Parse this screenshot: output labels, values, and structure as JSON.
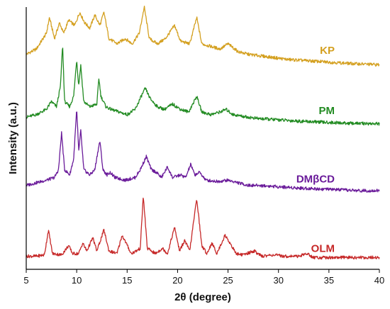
{
  "chart_data": {
    "type": "line",
    "title": "",
    "xlabel": "2θ (degree)",
    "ylabel": "Intensity (a.u.)",
    "xlim": [
      5,
      40
    ],
    "xticks": [
      5,
      10,
      15,
      20,
      25,
      30,
      35,
      40
    ],
    "grid": false,
    "legend": "inline labels at right end of each trace",
    "series": [
      {
        "name": "KP",
        "color": "#D4A020",
        "baseline": 0.8,
        "points": [
          [
            5,
            0.82
          ],
          [
            6,
            0.84
          ],
          [
            7,
            0.9
          ],
          [
            7.3,
            0.96
          ],
          [
            7.8,
            0.88
          ],
          [
            8.3,
            0.94
          ],
          [
            8.7,
            0.9
          ],
          [
            9.2,
            0.95
          ],
          [
            9.8,
            0.93
          ],
          [
            10.3,
            0.98
          ],
          [
            10.8,
            0.94
          ],
          [
            11.3,
            0.92
          ],
          [
            11.8,
            0.97
          ],
          [
            12.3,
            0.93
          ],
          [
            12.7,
            0.98
          ],
          [
            13.2,
            0.88
          ],
          [
            14,
            0.86
          ],
          [
            14.8,
            0.88
          ],
          [
            15.5,
            0.86
          ],
          [
            16.2,
            0.9
          ],
          [
            16.7,
            1.0
          ],
          [
            17.2,
            0.88
          ],
          [
            18,
            0.86
          ],
          [
            18.8,
            0.88
          ],
          [
            19.7,
            0.93
          ],
          [
            20.3,
            0.87
          ],
          [
            21.2,
            0.86
          ],
          [
            21.9,
            0.96
          ],
          [
            22.4,
            0.86
          ],
          [
            23.3,
            0.85
          ],
          [
            24.2,
            0.84
          ],
          [
            25,
            0.86
          ],
          [
            26,
            0.83
          ],
          [
            27,
            0.82
          ],
          [
            28,
            0.815
          ],
          [
            29,
            0.81
          ],
          [
            30,
            0.805
          ],
          [
            31,
            0.8
          ],
          [
            33,
            0.795
          ],
          [
            35,
            0.79
          ],
          [
            37,
            0.785
          ],
          [
            40,
            0.78
          ]
        ]
      },
      {
        "name": "PM",
        "color": "#228B22",
        "baseline": 0.57,
        "points": [
          [
            5,
            0.58
          ],
          [
            6,
            0.59
          ],
          [
            7,
            0.61
          ],
          [
            7.5,
            0.64
          ],
          [
            8,
            0.62
          ],
          [
            8.4,
            0.7
          ],
          [
            8.6,
            0.86
          ],
          [
            8.8,
            0.64
          ],
          [
            9.3,
            0.62
          ],
          [
            9.7,
            0.66
          ],
          [
            10.0,
            0.8
          ],
          [
            10.2,
            0.7
          ],
          [
            10.4,
            0.78
          ],
          [
            10.7,
            0.64
          ],
          [
            11.3,
            0.62
          ],
          [
            12.0,
            0.63
          ],
          [
            12.2,
            0.73
          ],
          [
            12.4,
            0.66
          ],
          [
            12.9,
            0.62
          ],
          [
            13.4,
            0.61
          ],
          [
            14.2,
            0.6
          ],
          [
            15.0,
            0.59
          ],
          [
            15.8,
            0.61
          ],
          [
            16.4,
            0.66
          ],
          [
            16.8,
            0.69
          ],
          [
            17.3,
            0.65
          ],
          [
            18,
            0.62
          ],
          [
            18.7,
            0.61
          ],
          [
            19.5,
            0.63
          ],
          [
            20.3,
            0.61
          ],
          [
            21.1,
            0.6
          ],
          [
            21.9,
            0.66
          ],
          [
            22.4,
            0.6
          ],
          [
            23.3,
            0.59
          ],
          [
            24.2,
            0.6
          ],
          [
            24.8,
            0.61
          ],
          [
            25.5,
            0.59
          ],
          [
            27,
            0.58
          ],
          [
            28,
            0.575
          ],
          [
            30,
            0.57
          ],
          [
            32,
            0.565
          ],
          [
            35,
            0.56
          ],
          [
            37,
            0.557
          ],
          [
            40,
            0.555
          ]
        ]
      },
      {
        "name": "DMβCD",
        "color": "#6A1B9A",
        "baseline": 0.31,
        "points": [
          [
            5,
            0.32
          ],
          [
            6,
            0.33
          ],
          [
            7,
            0.34
          ],
          [
            7.8,
            0.35
          ],
          [
            8.2,
            0.38
          ],
          [
            8.5,
            0.52
          ],
          [
            8.8,
            0.38
          ],
          [
            9.3,
            0.36
          ],
          [
            9.7,
            0.42
          ],
          [
            10.0,
            0.61
          ],
          [
            10.2,
            0.45
          ],
          [
            10.4,
            0.53
          ],
          [
            10.7,
            0.38
          ],
          [
            11.3,
            0.36
          ],
          [
            11.8,
            0.38
          ],
          [
            12.1,
            0.45
          ],
          [
            12.3,
            0.49
          ],
          [
            12.6,
            0.38
          ],
          [
            13.0,
            0.36
          ],
          [
            13.3,
            0.37
          ],
          [
            13.8,
            0.35
          ],
          [
            14.8,
            0.34
          ],
          [
            15.8,
            0.35
          ],
          [
            16.3,
            0.38
          ],
          [
            16.9,
            0.43
          ],
          [
            17.4,
            0.38
          ],
          [
            17.9,
            0.37
          ],
          [
            18.4,
            0.35
          ],
          [
            19.0,
            0.39
          ],
          [
            19.5,
            0.35
          ],
          [
            20.3,
            0.36
          ],
          [
            20.8,
            0.35
          ],
          [
            21.3,
            0.4
          ],
          [
            21.7,
            0.36
          ],
          [
            22.2,
            0.37
          ],
          [
            22.8,
            0.34
          ],
          [
            24,
            0.335
          ],
          [
            25,
            0.34
          ],
          [
            26,
            0.33
          ],
          [
            27,
            0.32
          ],
          [
            28,
            0.32
          ],
          [
            30,
            0.315
          ],
          [
            32,
            0.31
          ],
          [
            35,
            0.305
          ],
          [
            38,
            0.3
          ],
          [
            40,
            0.3
          ]
        ]
      },
      {
        "name": "OLM",
        "color": "#C62828",
        "baseline": 0.045,
        "points": [
          [
            5,
            0.05
          ],
          [
            6,
            0.05
          ],
          [
            6.8,
            0.055
          ],
          [
            7.2,
            0.15
          ],
          [
            7.6,
            0.06
          ],
          [
            8.5,
            0.055
          ],
          [
            9.2,
            0.09
          ],
          [
            9.6,
            0.06
          ],
          [
            10.2,
            0.06
          ],
          [
            10.6,
            0.1
          ],
          [
            11.0,
            0.07
          ],
          [
            11.6,
            0.12
          ],
          [
            12.0,
            0.07
          ],
          [
            12.7,
            0.15
          ],
          [
            13.2,
            0.07
          ],
          [
            14.0,
            0.06
          ],
          [
            14.5,
            0.13
          ],
          [
            14.9,
            0.1
          ],
          [
            15.4,
            0.06
          ],
          [
            15.9,
            0.07
          ],
          [
            16.3,
            0.08
          ],
          [
            16.6,
            0.28
          ],
          [
            17.0,
            0.08
          ],
          [
            17.8,
            0.06
          ],
          [
            18.5,
            0.08
          ],
          [
            19.0,
            0.06
          ],
          [
            19.7,
            0.16
          ],
          [
            20.2,
            0.07
          ],
          [
            20.7,
            0.11
          ],
          [
            21.2,
            0.07
          ],
          [
            21.9,
            0.27
          ],
          [
            22.4,
            0.09
          ],
          [
            22.9,
            0.06
          ],
          [
            23.4,
            0.1
          ],
          [
            23.9,
            0.06
          ],
          [
            24.7,
            0.13
          ],
          [
            25.2,
            0.1
          ],
          [
            25.8,
            0.06
          ],
          [
            26.5,
            0.055
          ],
          [
            27.6,
            0.07
          ],
          [
            28.3,
            0.05
          ],
          [
            29.5,
            0.055
          ],
          [
            30.5,
            0.05
          ],
          [
            32,
            0.05
          ],
          [
            32.8,
            0.06
          ],
          [
            33.5,
            0.045
          ],
          [
            35,
            0.045
          ],
          [
            37,
            0.045
          ],
          [
            40,
            0.045
          ]
        ]
      }
    ]
  }
}
